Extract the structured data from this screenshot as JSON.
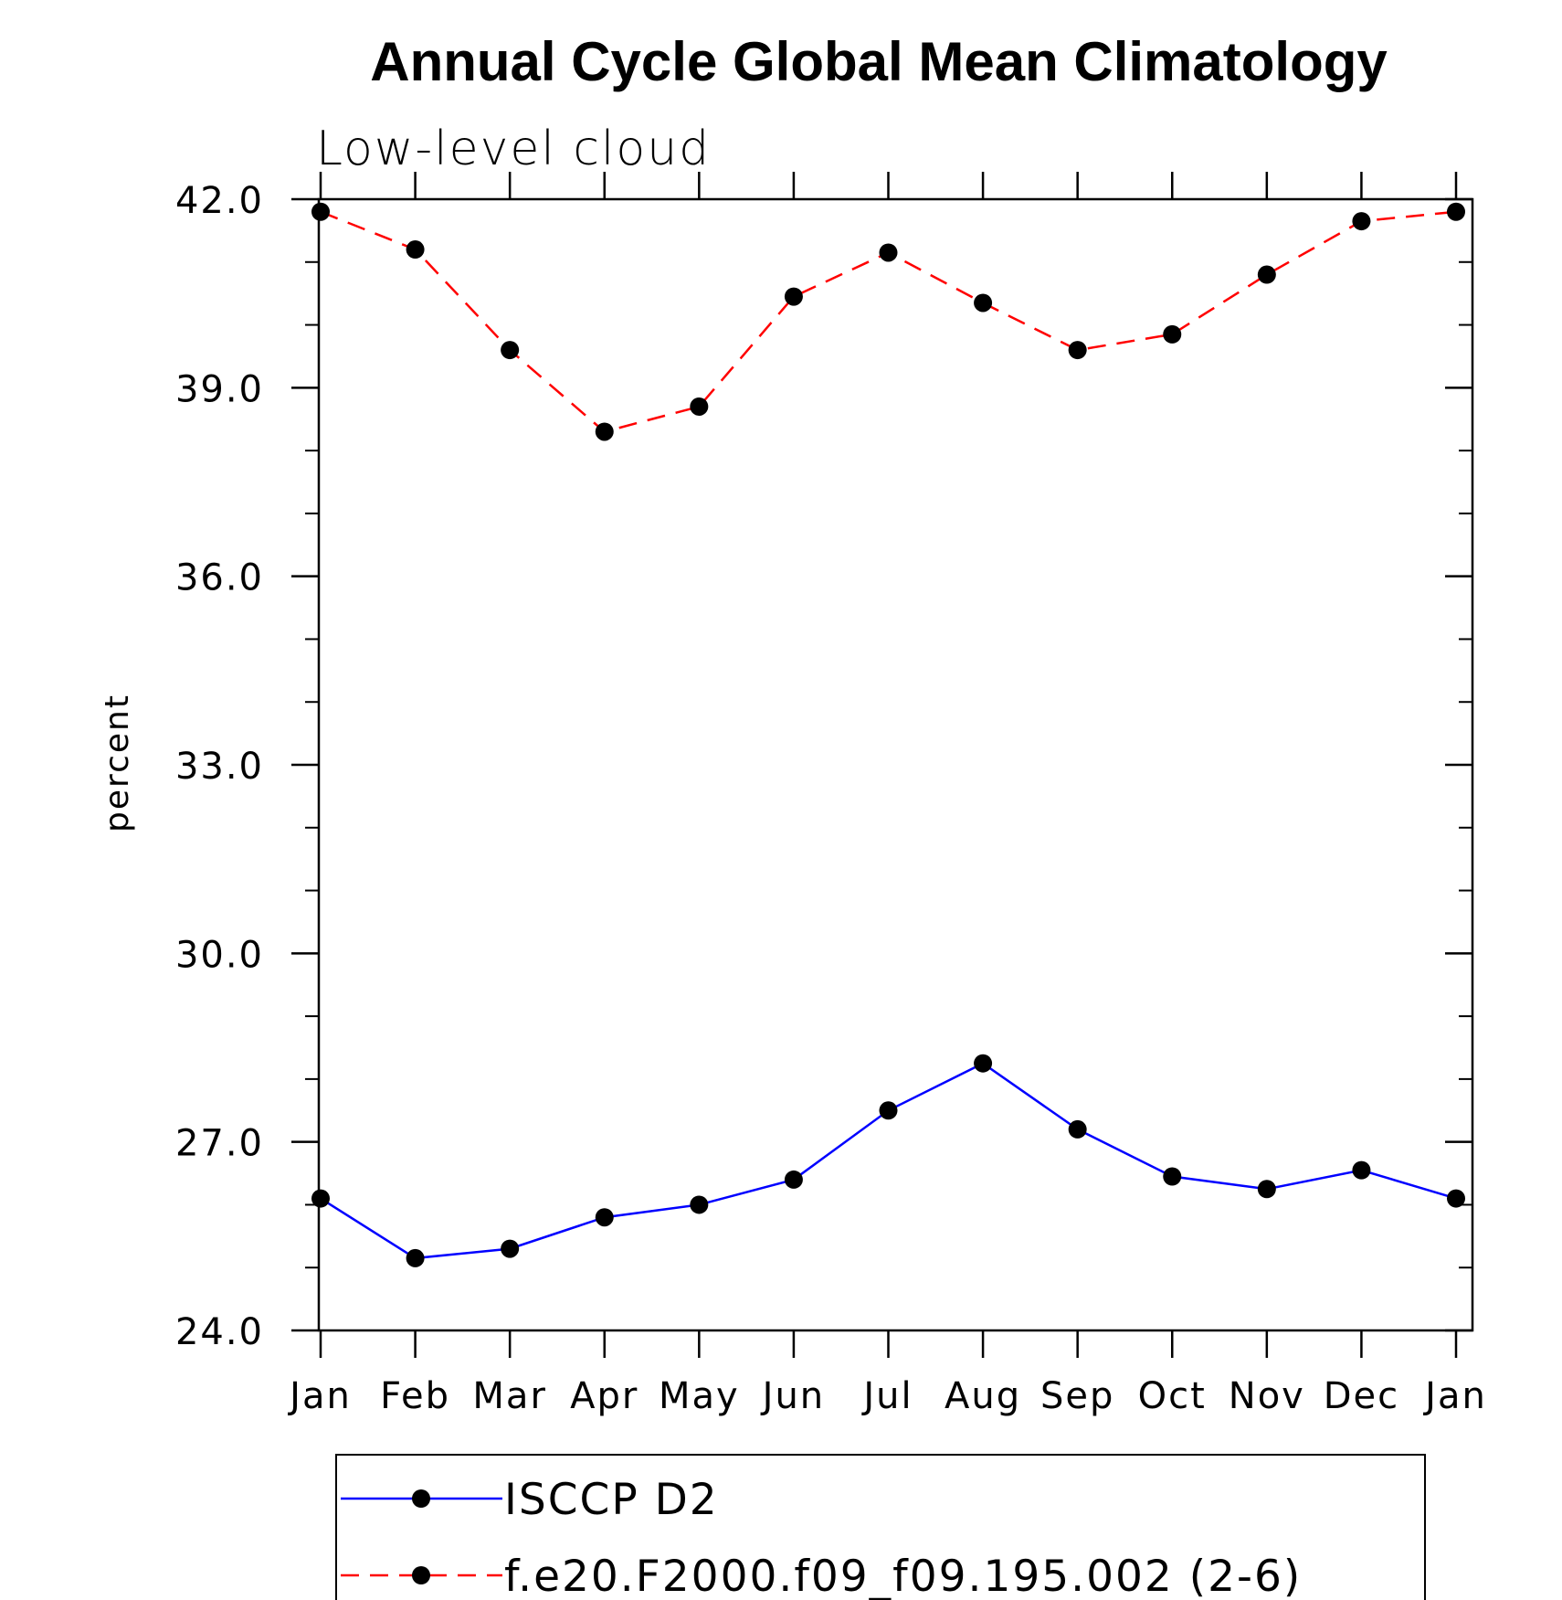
{
  "chart_data": {
    "type": "line",
    "title": "Annual Cycle Global Mean Climatology",
    "subtitle": "Low-level cloud",
    "xlabel": "",
    "ylabel": "percent",
    "categories": [
      "Jan",
      "Feb",
      "Mar",
      "Apr",
      "May",
      "Jun",
      "Jul",
      "Aug",
      "Sep",
      "Oct",
      "Nov",
      "Dec",
      "Jan"
    ],
    "ylim": [
      24.0,
      42.0
    ],
    "yticks": [
      "42.0",
      "39.0",
      "36.0",
      "33.0",
      "30.0",
      "27.0",
      "24.0"
    ],
    "ytick_values": [
      42,
      39,
      36,
      33,
      30,
      27,
      24
    ],
    "grid": false,
    "legend_position": "bottom",
    "series": [
      {
        "name": "ISCCP D2",
        "color": "#0000ff",
        "dash": "solid",
        "marker": "filled-circle",
        "values": [
          26.1,
          25.15,
          25.3,
          25.8,
          26.0,
          26.4,
          27.5,
          28.25,
          27.2,
          26.45,
          26.25,
          26.55,
          26.1
        ]
      },
      {
        "name": "f.e20.F2000.f09_f09.195.002 (2-6)",
        "color": "#ff0000",
        "dash": "dashed",
        "marker": "filled-circle",
        "values": [
          41.8,
          41.2,
          39.6,
          38.3,
          38.7,
          40.45,
          41.15,
          40.35,
          39.6,
          39.85,
          40.8,
          41.65,
          41.8
        ]
      }
    ]
  }
}
